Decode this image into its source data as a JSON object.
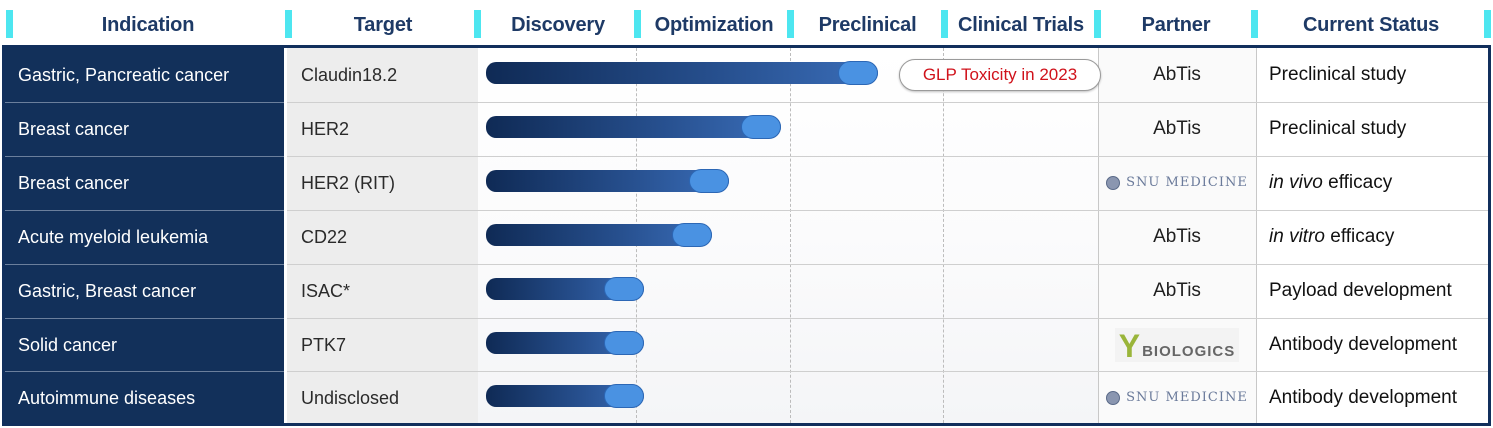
{
  "header": {
    "indication": "Indication",
    "target": "Target",
    "discovery": "Discovery",
    "optimization": "Optimization",
    "preclinical": "Preclinical",
    "clinical_trials": "Clinical Trials",
    "partner": "Partner",
    "current_status": "Current Status"
  },
  "badge": "GLP Toxicity in 2023",
  "rows": [
    {
      "indication": "Gastric, Pancreatic cancer",
      "target": "Claudin18.2",
      "partner": "AbTis",
      "status": "Preclinical study",
      "progress_stages": 2.6
    },
    {
      "indication": "Breast cancer",
      "target": "HER2",
      "partner": "AbTis",
      "status": "Preclinical study",
      "progress_stages": 1.97
    },
    {
      "indication": "Breast cancer",
      "target": "HER2 (RIT)",
      "partner_logo": "SNU MEDICINE",
      "status_italic": "in vivo",
      "status_rest": " efficacy",
      "progress_stages": 1.63
    },
    {
      "indication": "Acute myeloid leukemia",
      "target": "CD22",
      "partner": "AbTis",
      "status_italic": "in vitro",
      "status_rest": " efficacy",
      "progress_stages": 1.52
    },
    {
      "indication": "Gastric, Breast cancer",
      "target": "ISAC*",
      "partner": "AbTis",
      "status": "Payload development",
      "progress_stages": 1.08
    },
    {
      "indication": "Solid cancer",
      "target": "PTK7",
      "partner_logo": "BIOLOGICS",
      "status": "Antibody development",
      "progress_stages": 1.08
    },
    {
      "indication": "Autoimmune diseases",
      "target": "Undisclosed",
      "partner_logo": "SNU MEDICINE",
      "status": "Antibody development",
      "progress_stages": 1.08
    }
  ],
  "colors": {
    "navy": "#12305a",
    "accent": "#4de6f0",
    "bar_cap": "#4a92e2",
    "badge_text": "#d0121b"
  }
}
